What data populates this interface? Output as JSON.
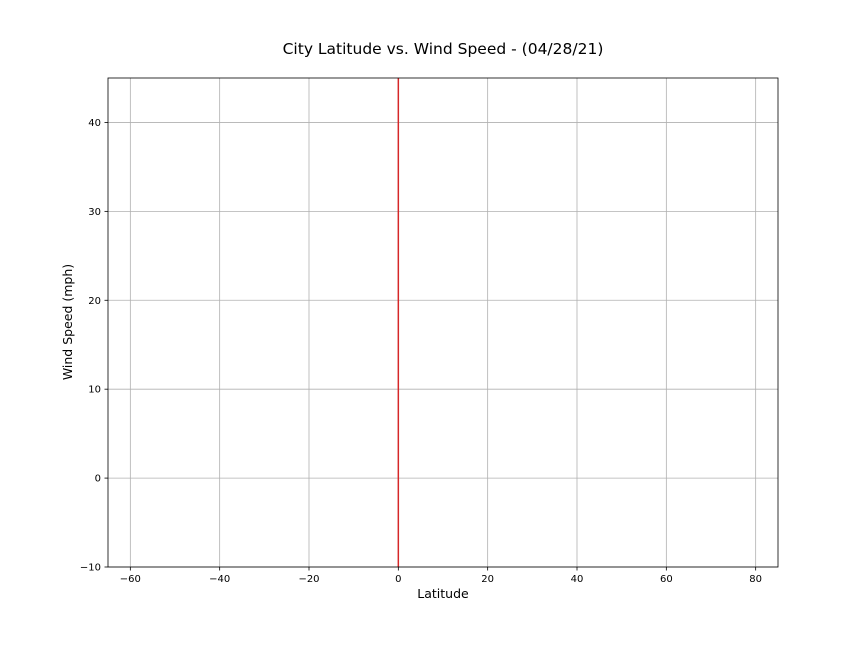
{
  "chart_data": {
    "type": "line",
    "title": "City Latitude vs. Wind Speed - (04/28/21)",
    "xlabel": "Latitude",
    "ylabel": "Wind Speed (mph)",
    "xlim": [
      -65,
      85
    ],
    "ylim": [
      -10,
      45
    ],
    "x_ticks": [
      -60,
      -40,
      -20,
      0,
      20,
      40,
      60,
      80
    ],
    "y_ticks": [
      -10,
      0,
      10,
      20,
      30,
      40
    ],
    "x_tick_labels": [
      "−60",
      "−40",
      "−20",
      "0",
      "20",
      "40",
      "60",
      "80"
    ],
    "y_tick_labels": [
      "−10",
      "0",
      "10",
      "20",
      "30",
      "40"
    ],
    "grid": true,
    "series": [
      {
        "color": "#d62728",
        "x": [
          0,
          0
        ],
        "y": [
          -10,
          45
        ]
      }
    ]
  }
}
